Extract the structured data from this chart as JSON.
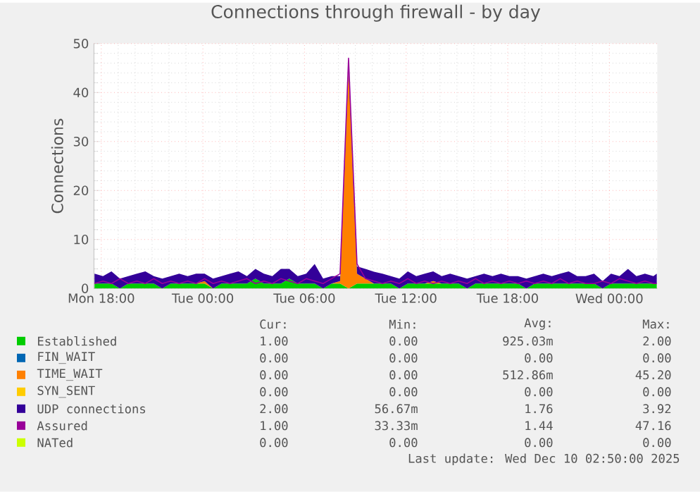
{
  "chart_data": {
    "type": "area",
    "title": "Connections through firewall - by day",
    "ylabel": "Connections",
    "stacked": true,
    "grid": true,
    "legend": "bottom",
    "x": [
      "2025-12-08T17:36",
      "2025-12-08T18:06",
      "2025-12-08T18:36",
      "2025-12-08T19:06",
      "2025-12-08T19:36",
      "2025-12-08T20:06",
      "2025-12-08T20:36",
      "2025-12-08T21:06",
      "2025-12-08T21:36",
      "2025-12-08T22:06",
      "2025-12-08T22:36",
      "2025-12-08T23:06",
      "2025-12-08T23:36",
      "2025-12-09T00:06",
      "2025-12-09T00:36",
      "2025-12-09T01:06",
      "2025-12-09T01:36",
      "2025-12-09T02:06",
      "2025-12-09T02:36",
      "2025-12-09T03:06",
      "2025-12-09T03:36",
      "2025-12-09T04:06",
      "2025-12-09T04:36",
      "2025-12-09T05:06",
      "2025-12-09T05:36",
      "2025-12-09T06:06",
      "2025-12-09T06:36",
      "2025-12-09T07:06",
      "2025-12-09T07:36",
      "2025-12-09T08:06",
      "2025-12-09T08:36",
      "2025-12-09T09:06",
      "2025-12-09T09:36",
      "2025-12-09T10:06",
      "2025-12-09T10:36",
      "2025-12-09T11:06",
      "2025-12-09T11:36",
      "2025-12-09T12:06",
      "2025-12-09T12:36",
      "2025-12-09T13:06",
      "2025-12-09T13:36",
      "2025-12-09T14:06",
      "2025-12-09T14:36",
      "2025-12-09T15:06",
      "2025-12-09T15:36",
      "2025-12-09T16:06",
      "2025-12-09T16:36",
      "2025-12-09T17:06",
      "2025-12-09T17:36",
      "2025-12-09T18:06",
      "2025-12-09T18:36",
      "2025-12-09T19:06",
      "2025-12-09T19:36",
      "2025-12-09T20:06",
      "2025-12-09T20:36",
      "2025-12-09T21:06",
      "2025-12-09T21:36",
      "2025-12-09T22:06",
      "2025-12-09T22:36",
      "2025-12-09T23:06",
      "2025-12-09T23:36",
      "2025-12-10T00:06",
      "2025-12-10T00:36",
      "2025-12-10T01:06",
      "2025-12-10T01:36",
      "2025-12-10T02:06",
      "2025-12-10T02:36",
      "2025-12-10T02:48"
    ],
    "xlim": [
      "2025-12-08T17:34",
      "2025-12-10T02:50"
    ],
    "ylim": [
      0,
      50
    ],
    "xticks": [
      {
        "value": "2025-12-08T18:00",
        "label": "Mon 18:00"
      },
      {
        "value": "2025-12-09T00:00",
        "label": "Tue 00:00"
      },
      {
        "value": "2025-12-09T06:00",
        "label": "Tue 06:00"
      },
      {
        "value": "2025-12-09T12:00",
        "label": "Tue 12:00"
      },
      {
        "value": "2025-12-09T18:00",
        "label": "Tue 18:00"
      },
      {
        "value": "2025-12-10T00:00",
        "label": "Wed 00:00"
      }
    ],
    "yticks": [
      0,
      10,
      20,
      30,
      40,
      50
    ],
    "series": [
      {
        "name": "Established",
        "color": "#00cc00",
        "values": [
          1,
          1,
          1,
          0,
          1,
          1,
          1,
          1,
          0,
          1,
          1,
          1,
          1,
          1,
          0,
          1,
          1,
          1,
          1,
          2,
          1,
          1,
          1,
          2,
          1,
          1,
          1,
          0,
          1,
          1,
          0,
          1,
          1,
          1,
          1,
          1,
          0,
          1,
          1,
          1,
          1,
          1,
          1,
          1,
          0,
          1,
          1,
          1,
          1,
          1,
          1,
          0,
          1,
          1,
          1,
          1,
          1,
          1,
          1,
          1,
          0,
          1,
          1,
          1,
          1,
          1,
          1,
          1
        ]
      },
      {
        "name": "FIN_WAIT",
        "color": "#0066b3",
        "values": [
          null,
          null,
          null,
          null,
          null,
          null,
          null,
          null,
          null,
          null,
          null,
          null,
          null,
          null,
          null,
          null,
          null,
          null,
          null,
          null,
          null,
          null,
          null,
          null,
          null,
          null,
          null,
          null,
          null,
          null,
          null,
          null,
          null,
          null,
          null,
          null,
          null,
          null,
          null,
          null,
          null,
          null,
          null,
          null,
          null,
          null,
          null,
          null,
          null,
          null,
          null,
          null,
          null,
          null,
          null,
          null,
          null,
          null,
          null,
          null,
          null,
          null,
          null,
          null,
          null,
          null,
          null,
          null
        ]
      },
      {
        "name": "TIME_WAIT",
        "color": "#ff8000",
        "values": [
          0,
          0,
          0,
          0,
          0,
          0,
          0,
          0,
          0,
          0,
          0,
          0,
          0,
          0.5,
          0,
          0,
          0,
          0,
          0,
          0,
          0,
          0,
          0,
          0,
          0,
          0,
          0,
          0,
          0,
          0.5,
          45,
          2,
          1,
          0,
          0,
          0,
          0,
          0,
          0,
          0,
          0.5,
          0,
          0,
          0,
          0,
          0,
          0,
          0,
          0,
          0,
          0,
          0,
          0,
          0,
          0,
          0,
          0,
          0,
          0,
          0,
          0,
          0,
          0,
          0,
          0,
          0,
          0,
          0
        ]
      },
      {
        "name": "SYN_SENT",
        "color": "#ffcc00",
        "values": [
          null,
          null,
          null,
          null,
          null,
          null,
          null,
          null,
          null,
          null,
          null,
          null,
          null,
          null,
          null,
          null,
          null,
          null,
          null,
          null,
          null,
          null,
          null,
          null,
          null,
          null,
          null,
          null,
          null,
          null,
          null,
          null,
          null,
          null,
          null,
          null,
          null,
          null,
          null,
          null,
          null,
          null,
          null,
          null,
          null,
          null,
          null,
          null,
          null,
          null,
          null,
          null,
          null,
          null,
          null,
          null,
          null,
          null,
          null,
          null,
          null,
          null,
          null,
          null,
          null,
          null,
          null,
          null
        ]
      },
      {
        "name": "UDP connections",
        "color": "#330099",
        "values": [
          2,
          1.5,
          2.5,
          2,
          1.5,
          2,
          2.5,
          1.5,
          2,
          1.5,
          2,
          1.5,
          2,
          1.5,
          2,
          1.5,
          2,
          2.5,
          1.5,
          2,
          2,
          1.5,
          3,
          2,
          1.5,
          2,
          4,
          2,
          1.5,
          1,
          1,
          1.5,
          2,
          2.4,
          2,
          1.5,
          2,
          2.5,
          1.5,
          2,
          2,
          1.5,
          2,
          1.5,
          2,
          1.5,
          2,
          1.5,
          2,
          1.5,
          1.5,
          2,
          1.5,
          2,
          1.5,
          2,
          2.5,
          1.5,
          1.5,
          2,
          1.5,
          2,
          1.5,
          3,
          1.5,
          2,
          1.5,
          2
        ]
      },
      {
        "name": "Assured",
        "color": "#990099",
        "type": "line",
        "values": [
          1,
          1.5,
          1,
          2,
          1,
          1.5,
          1,
          2,
          1,
          1.5,
          1,
          1.5,
          1,
          2,
          1,
          1.5,
          1,
          1.5,
          2,
          1,
          1.5,
          1,
          2,
          1.5,
          1,
          2,
          1.5,
          1,
          2,
          3,
          47,
          5,
          2,
          1.5,
          1,
          1.5,
          1,
          2,
          1,
          1.5,
          1,
          1.5,
          1,
          1.5,
          1,
          2,
          1,
          1.5,
          1,
          1.5,
          1,
          1.5,
          1,
          1.5,
          1,
          2,
          1,
          1.5,
          1,
          1,
          1.5,
          1,
          2,
          1.5,
          1,
          1.5,
          1,
          1
        ]
      },
      {
        "name": "NATed",
        "color": "#ccff00",
        "type": "line",
        "values": [
          null,
          null,
          null,
          null,
          null,
          null,
          null,
          null,
          null,
          null,
          null,
          null,
          null,
          null,
          null,
          null,
          null,
          null,
          null,
          null,
          null,
          null,
          null,
          null,
          null,
          null,
          null,
          null,
          null,
          null,
          null,
          null,
          null,
          null,
          null,
          null,
          null,
          null,
          null,
          null,
          null,
          null,
          null,
          null,
          null,
          null,
          null,
          null,
          null,
          null,
          null,
          null,
          null,
          null,
          null,
          null,
          null,
          null,
          null,
          null,
          null,
          null,
          null,
          null,
          null,
          null,
          null,
          null
        ]
      }
    ],
    "annotations": [
      "Cur:",
      "Min:",
      "Avg:",
      "Max:",
      "1.00",
      "0.00",
      "925.03m",
      "2.00",
      "0.00",
      "0.00",
      "0.00",
      "0.00",
      "0.00",
      "0.00",
      "512.86m",
      "45.20",
      "0.00",
      "0.00",
      "0.00",
      "0.00",
      "2.00",
      "56.67m",
      "1.76",
      "3.92",
      "1.00",
      "33.33m",
      "1.44",
      "47.16",
      "0.00",
      "0.00",
      "0.00",
      "0.00",
      "Last update: Wed Dec 10 02:50:00 2025"
    ]
  }
}
